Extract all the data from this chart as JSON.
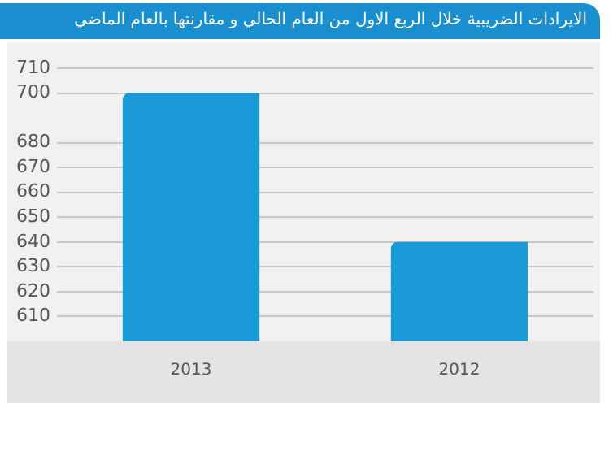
{
  "chart_data": {
    "type": "bar",
    "title": "الايرادات الضريبية خلال الربع الاول من العام الحالي و مقارنتها بالعام الماضي",
    "categories": [
      "2013",
      "2012"
    ],
    "values": [
      700,
      640
    ],
    "color": "#1a9ad9",
    "ylim": [
      600,
      710
    ],
    "yticks": [
      610,
      620,
      630,
      640,
      650,
      660,
      670,
      680,
      700,
      710
    ],
    "grid": "y"
  }
}
